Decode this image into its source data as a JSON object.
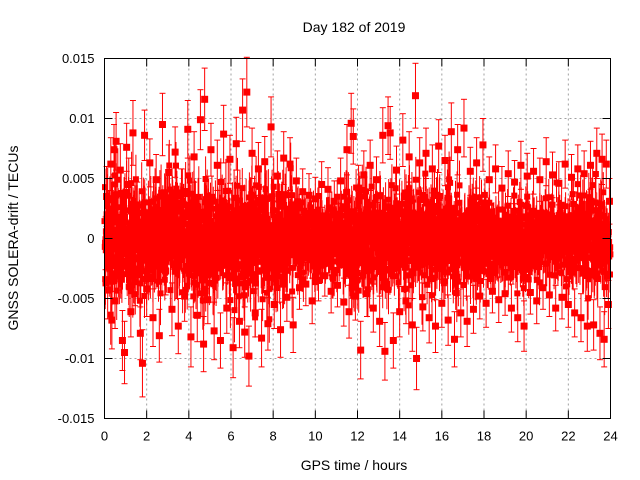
{
  "chart_data": {
    "type": "scatter",
    "title": "Day 182 of 2019",
    "xlabel": "GPS time / hours",
    "ylabel": "GNSS SOLERA-drift / TECUs",
    "xlim": [
      0,
      24
    ],
    "ylim": [
      -0.015,
      0.015
    ],
    "xticks": [
      0,
      2,
      4,
      6,
      8,
      10,
      12,
      14,
      16,
      18,
      20,
      22,
      24
    ],
    "yticks": [
      -0.015,
      -0.01,
      -0.005,
      0,
      0.005,
      0.01,
      0.015
    ],
    "xtick_labels": [
      "0",
      "2",
      "4",
      "6",
      "8",
      "10",
      "12",
      "14",
      "16",
      "18",
      "20",
      "22",
      "24"
    ],
    "ytick_labels": [
      "-0.015",
      "-0.01",
      "-0.005",
      "0",
      "0.005",
      "0.01",
      "0.015"
    ],
    "grid": true,
    "series_color": "#ff0000",
    "error_bars": true,
    "points_note_free": true,
    "series": [
      {
        "points": [
          [
            0.05,
            -0.0004,
            0.0022
          ],
          [
            0.1,
            0.0035,
            0.0025
          ],
          [
            0.15,
            -0.0043,
            0.0024
          ],
          [
            0.2,
            0.0015,
            0.002
          ],
          [
            0.3,
            0.0062,
            0.0022
          ],
          [
            0.35,
            -0.0068,
            0.0024
          ],
          [
            0.45,
            0.0074,
            0.0021
          ],
          [
            0.5,
            -0.0052,
            0.0023
          ],
          [
            0.55,
            0.0081,
            0.0024
          ],
          [
            0.65,
            -0.0023,
            0.002
          ],
          [
            0.75,
            0.0057,
            0.0022
          ],
          [
            0.85,
            -0.0085,
            0.0025
          ],
          [
            0.95,
            -0.0095,
            0.0026
          ],
          [
            1.05,
            0.0076,
            0.002
          ],
          [
            1.15,
            0.0045,
            0.0022
          ],
          [
            1.25,
            -0.0061,
            0.0021
          ],
          [
            1.35,
            0.0088,
            0.0027
          ],
          [
            1.45,
            -0.0036,
            0.002
          ],
          [
            1.55,
            0.0028,
            0.0019
          ],
          [
            1.7,
            -0.0079,
            0.0022
          ],
          [
            1.8,
            -0.0104,
            0.0028
          ],
          [
            1.9,
            0.0086,
            0.0021
          ],
          [
            2.0,
            -0.0042,
            0.0023
          ],
          [
            2.15,
            0.0063,
            0.002
          ],
          [
            2.3,
            -0.0066,
            0.0024
          ],
          [
            2.45,
            0.0049,
            0.0021
          ],
          [
            2.6,
            -0.0081,
            0.0022
          ],
          [
            2.75,
            0.0095,
            0.0026
          ],
          [
            2.9,
            -0.0027,
            0.002
          ],
          [
            3.05,
            0.0055,
            0.0023
          ],
          [
            3.2,
            -0.0059,
            0.0022
          ],
          [
            3.35,
            0.0072,
            0.0021
          ],
          [
            3.5,
            -0.0073,
            0.0023
          ],
          [
            3.65,
            0.0038,
            0.002
          ],
          [
            3.8,
            -0.0048,
            0.0021
          ],
          [
            3.95,
            0.0091,
            0.0024
          ],
          [
            4.1,
            -0.0082,
            0.0025
          ],
          [
            4.25,
            0.0068,
            0.0021
          ],
          [
            4.4,
            -0.0064,
            0.0022
          ],
          [
            4.55,
            0.0099,
            0.0025
          ],
          [
            4.7,
            -0.0088,
            0.0023
          ],
          [
            4.75,
            0.0116,
            0.0026
          ],
          [
            4.9,
            -0.0051,
            0.002
          ],
          [
            5.05,
            0.0074,
            0.0022
          ],
          [
            5.2,
            -0.0077,
            0.0024
          ],
          [
            5.35,
            0.0061,
            0.0021
          ],
          [
            5.5,
            -0.0085,
            0.0023
          ],
          [
            5.65,
            0.0087,
            0.0024
          ],
          [
            5.8,
            -0.0058,
            0.0021
          ],
          [
            5.95,
            0.0066,
            0.002
          ],
          [
            6.1,
            -0.0091,
            0.0025
          ],
          [
            6.25,
            0.0079,
            0.0022
          ],
          [
            6.4,
            -0.0069,
            0.0022
          ],
          [
            6.55,
            0.0107,
            0.0026
          ],
          [
            6.65,
            -0.0078,
            0.0021
          ],
          [
            6.75,
            0.0122,
            0.0029
          ],
          [
            6.85,
            -0.0098,
            0.0025
          ],
          [
            7.0,
            0.0071,
            0.0021
          ],
          [
            7.15,
            -0.0062,
            0.002
          ],
          [
            7.3,
            0.0058,
            0.0022
          ],
          [
            7.45,
            -0.0083,
            0.0024
          ],
          [
            7.6,
            0.0064,
            0.0021
          ],
          [
            7.75,
            -0.0071,
            0.0022
          ],
          [
            7.9,
            0.0093,
            0.0025
          ],
          [
            8.05,
            -0.0055,
            0.002
          ],
          [
            8.2,
            0.0052,
            0.0021
          ],
          [
            8.35,
            -0.0076,
            0.0023
          ],
          [
            8.5,
            0.0067,
            0.0022
          ],
          [
            8.65,
            -0.0049,
            0.002
          ],
          [
            8.8,
            0.0062,
            0.0022
          ],
          [
            8.95,
            -0.0072,
            0.0023
          ],
          [
            9.1,
            0.0048,
            0.0019
          ],
          [
            9.25,
            -0.0041,
            0.0018
          ],
          [
            9.4,
            0.0039,
            0.0019
          ],
          [
            9.55,
            -0.0038,
            0.0018
          ],
          [
            9.7,
            0.0036,
            0.0018
          ],
          [
            9.85,
            -0.0052,
            0.0019
          ],
          [
            10.0,
            0.0033,
            0.0018
          ],
          [
            10.15,
            -0.0035,
            0.0017
          ],
          [
            10.3,
            0.0045,
            0.0019
          ],
          [
            10.45,
            -0.0031,
            0.0017
          ],
          [
            10.6,
            0.0041,
            0.0018
          ],
          [
            10.75,
            -0.0044,
            0.0018
          ],
          [
            10.9,
            0.0031,
            0.0017
          ],
          [
            11.05,
            -0.0039,
            0.0018
          ],
          [
            11.2,
            0.0048,
            0.0019
          ],
          [
            11.35,
            -0.0053,
            0.002
          ],
          [
            11.5,
            0.0074,
            0.0021
          ],
          [
            11.6,
            -0.0061,
            0.0022
          ],
          [
            11.7,
            0.0096,
            0.0025
          ],
          [
            11.8,
            0.0085,
            0.0023
          ],
          [
            11.9,
            -0.0048,
            0.002
          ],
          [
            12.05,
            0.0042,
            0.0019
          ],
          [
            12.15,
            -0.0093,
            0.0024
          ],
          [
            12.3,
            0.0053,
            0.002
          ],
          [
            12.45,
            -0.0046,
            0.0019
          ],
          [
            12.6,
            0.0061,
            0.0021
          ],
          [
            12.75,
            -0.0058,
            0.002
          ],
          [
            12.9,
            0.0049,
            0.0019
          ],
          [
            13.05,
            -0.0069,
            0.0021
          ],
          [
            13.2,
            0.0086,
            0.0023
          ],
          [
            13.3,
            -0.0094,
            0.0024
          ],
          [
            13.45,
            0.0094,
            0.0024
          ],
          [
            13.55,
            0.0088,
            0.0022
          ],
          [
            13.7,
            -0.0085,
            0.0023
          ],
          [
            13.85,
            0.0057,
            0.002
          ],
          [
            14.0,
            -0.0061,
            0.0021
          ],
          [
            14.15,
            0.0082,
            0.0022
          ],
          [
            14.3,
            -0.0052,
            0.0019
          ],
          [
            14.45,
            0.0068,
            0.0021
          ],
          [
            14.6,
            -0.0072,
            0.0022
          ],
          [
            14.75,
            0.0119,
            0.0027
          ],
          [
            14.8,
            -0.01,
            0.0026
          ],
          [
            14.95,
            0.0063,
            0.0021
          ],
          [
            15.1,
            -0.0057,
            0.002
          ],
          [
            15.25,
            0.0071,
            0.0021
          ],
          [
            15.4,
            -0.0066,
            0.0021
          ],
          [
            15.55,
            0.0058,
            0.002
          ],
          [
            15.7,
            -0.0073,
            0.0022
          ],
          [
            15.85,
            0.0077,
            0.0022
          ],
          [
            16.0,
            -0.0054,
            0.002
          ],
          [
            16.15,
            0.0065,
            0.0021
          ],
          [
            16.3,
            -0.0068,
            0.0021
          ],
          [
            16.45,
            0.0089,
            0.0024
          ],
          [
            16.6,
            -0.0084,
            0.0023
          ],
          [
            16.75,
            0.0074,
            0.0021
          ],
          [
            16.9,
            -0.0062,
            0.002
          ],
          [
            17.05,
            0.0092,
            0.0024
          ],
          [
            17.2,
            -0.0069,
            0.0021
          ],
          [
            17.35,
            0.0056,
            0.002
          ],
          [
            17.5,
            -0.0059,
            0.002
          ],
          [
            17.65,
            0.0063,
            0.0021
          ],
          [
            17.8,
            -0.0048,
            0.0019
          ],
          [
            17.95,
            0.0078,
            0.0022
          ],
          [
            18.1,
            -0.0054,
            0.002
          ],
          [
            18.25,
            0.0049,
            0.0019
          ],
          [
            18.4,
            -0.0044,
            0.0018
          ],
          [
            18.55,
            0.0058,
            0.002
          ],
          [
            18.7,
            -0.0051,
            0.0019
          ],
          [
            18.85,
            0.0042,
            0.0018
          ],
          [
            19.0,
            -0.0046,
            0.0018
          ],
          [
            19.15,
            0.0054,
            0.0019
          ],
          [
            19.3,
            -0.0058,
            0.002
          ],
          [
            19.45,
            0.0047,
            0.0018
          ],
          [
            19.6,
            -0.0066,
            0.002
          ],
          [
            19.75,
            0.0061,
            0.002
          ],
          [
            19.9,
            -0.0073,
            0.0021
          ],
          [
            20.05,
            0.0052,
            0.0019
          ],
          [
            20.2,
            -0.0045,
            0.0018
          ],
          [
            20.35,
            0.0056,
            0.0019
          ],
          [
            20.5,
            -0.0052,
            0.0019
          ],
          [
            20.65,
            0.0049,
            0.0018
          ],
          [
            20.8,
            -0.0041,
            0.0018
          ],
          [
            20.95,
            0.0064,
            0.002
          ],
          [
            21.1,
            -0.0047,
            0.0018
          ],
          [
            21.25,
            0.0053,
            0.0019
          ],
          [
            21.4,
            -0.0058,
            0.0019
          ],
          [
            21.55,
            0.0046,
            0.0018
          ],
          [
            21.7,
            -0.0049,
            0.0018
          ],
          [
            21.85,
            0.0062,
            0.002
          ],
          [
            22.0,
            -0.0055,
            0.0019
          ],
          [
            22.15,
            0.0051,
            0.0019
          ],
          [
            22.3,
            -0.0062,
            0.002
          ],
          [
            22.45,
            0.0058,
            0.002
          ],
          [
            22.6,
            -0.0066,
            0.002
          ],
          [
            22.75,
            0.0054,
            0.0019
          ],
          [
            22.9,
            -0.0073,
            0.0021
          ],
          [
            23.05,
            0.0061,
            0.002
          ],
          [
            23.2,
            -0.0072,
            0.0021
          ],
          [
            23.35,
            0.0071,
            0.0021
          ],
          [
            23.5,
            -0.0079,
            0.0022
          ],
          [
            23.6,
            0.0066,
            0.0021
          ],
          [
            23.7,
            -0.0084,
            0.0023
          ],
          [
            23.8,
            0.0062,
            0.002
          ],
          [
            23.9,
            -0.0055,
            0.002
          ],
          [
            23.95,
            0.0031,
            0.0019
          ]
        ]
      }
    ]
  }
}
